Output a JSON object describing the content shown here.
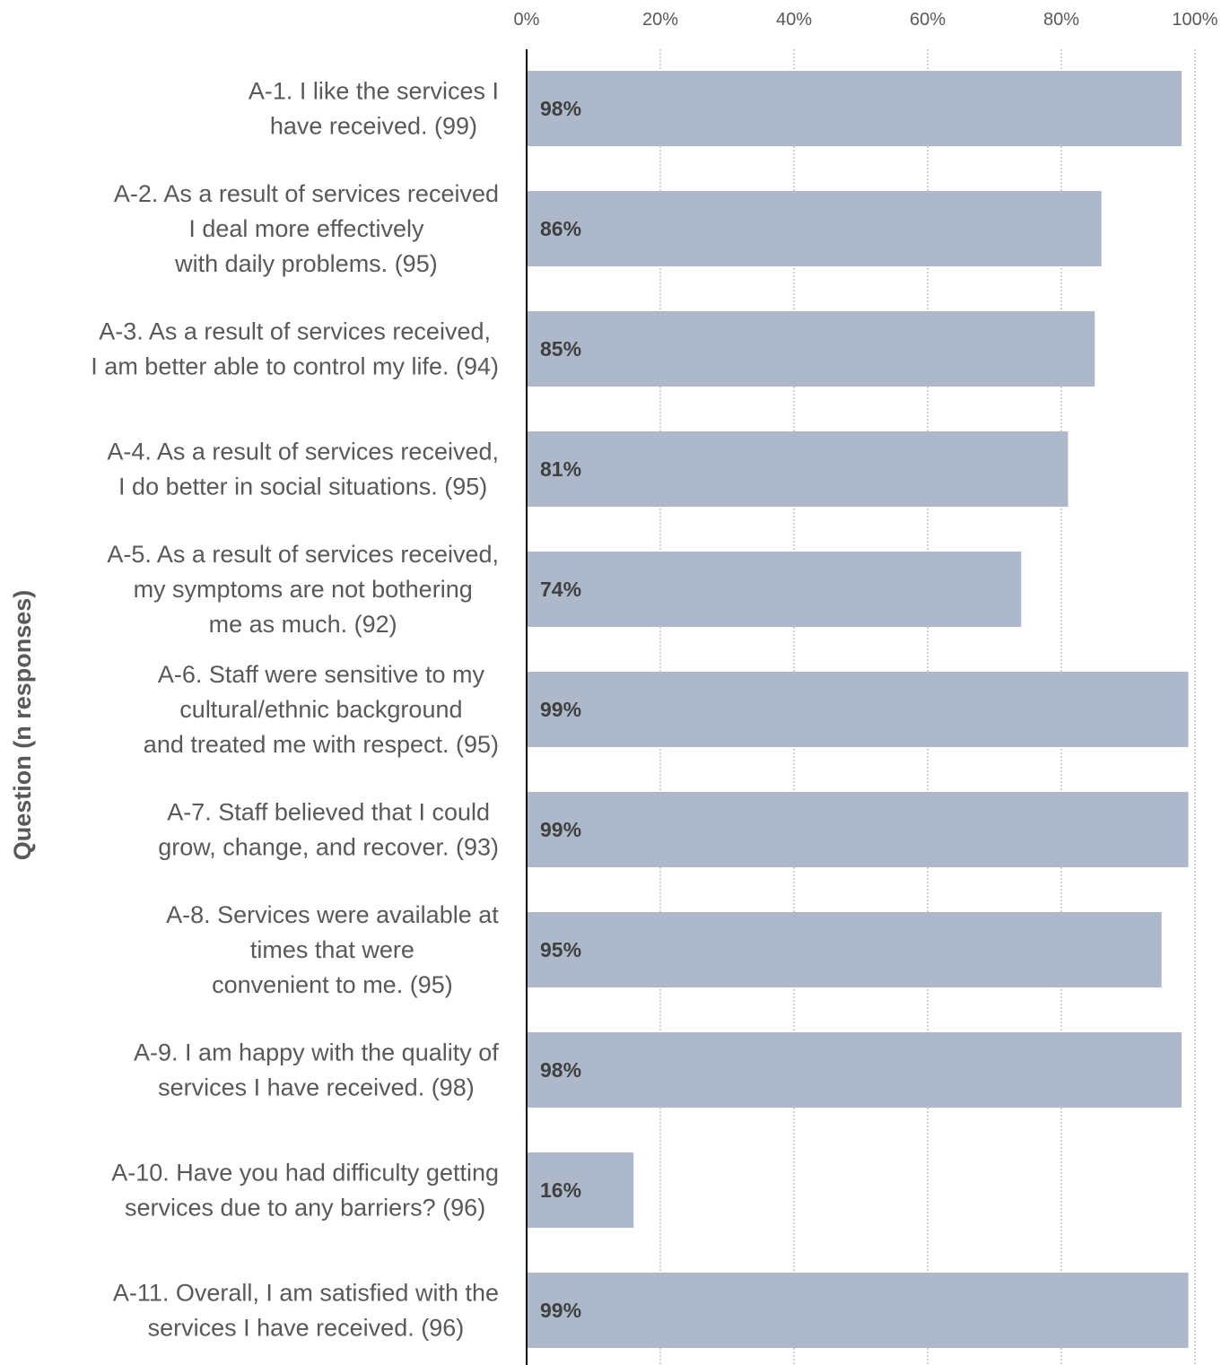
{
  "chart_data": {
    "type": "bar",
    "orientation": "horizontal",
    "title": "",
    "xlabel": "",
    "ylabel": "Question (n responses)",
    "xlim": [
      0,
      100
    ],
    "x_ticks": [
      "0%",
      "20%",
      "40%",
      "60%",
      "80%",
      "100%"
    ],
    "x_axis_position": "top",
    "grid": "vertical dashed",
    "legend": "none",
    "bar_color": "#adb9ca",
    "categories": [
      {
        "lines": [
          "A-1.  I like the services I",
          "have received. (99)"
        ]
      },
      {
        "lines": [
          "A-2.  As a result of services received",
          "I deal  more effectively",
          "with daily problems. (95)"
        ]
      },
      {
        "lines": [
          "A-3.  As a result of services received,",
          "I am better able to control my life. (94)"
        ]
      },
      {
        "lines": [
          "A-4.  As a result of services received,",
          "I do better in social situations. (95)"
        ]
      },
      {
        "lines": [
          "A-5.  As a result of services received,",
          "my symptoms are not bothering",
          "me as much. (92)"
        ]
      },
      {
        "lines": [
          "A-6. Staff were sensitive to my",
          "cultural/ethnic background",
          "and treated me with respect. (95)"
        ]
      },
      {
        "lines": [
          "A-7.  Staff believed that I could",
          "grow, change, and recover. (93)"
        ]
      },
      {
        "lines": [
          "A-8.  Services were available at",
          "times that were",
          "convenient to me. (95)"
        ]
      },
      {
        "lines": [
          "A-9.  I am happy with the quality of",
          "services I have received. (98)"
        ]
      },
      {
        "lines": [
          "A-10.  Have you had difficulty getting",
          "services due to any barriers? (96)"
        ]
      },
      {
        "lines": [
          "A-11.  Overall, I am satisfied with the",
          "services I have received. (96)"
        ]
      }
    ],
    "values": [
      98,
      86,
      85,
      81,
      74,
      99,
      99,
      95,
      98,
      16,
      99
    ],
    "data_labels": [
      "98%",
      "86%",
      "85%",
      "81%",
      "74%",
      "99%",
      "99%",
      "95%",
      "98%",
      "16%",
      "99%"
    ]
  }
}
